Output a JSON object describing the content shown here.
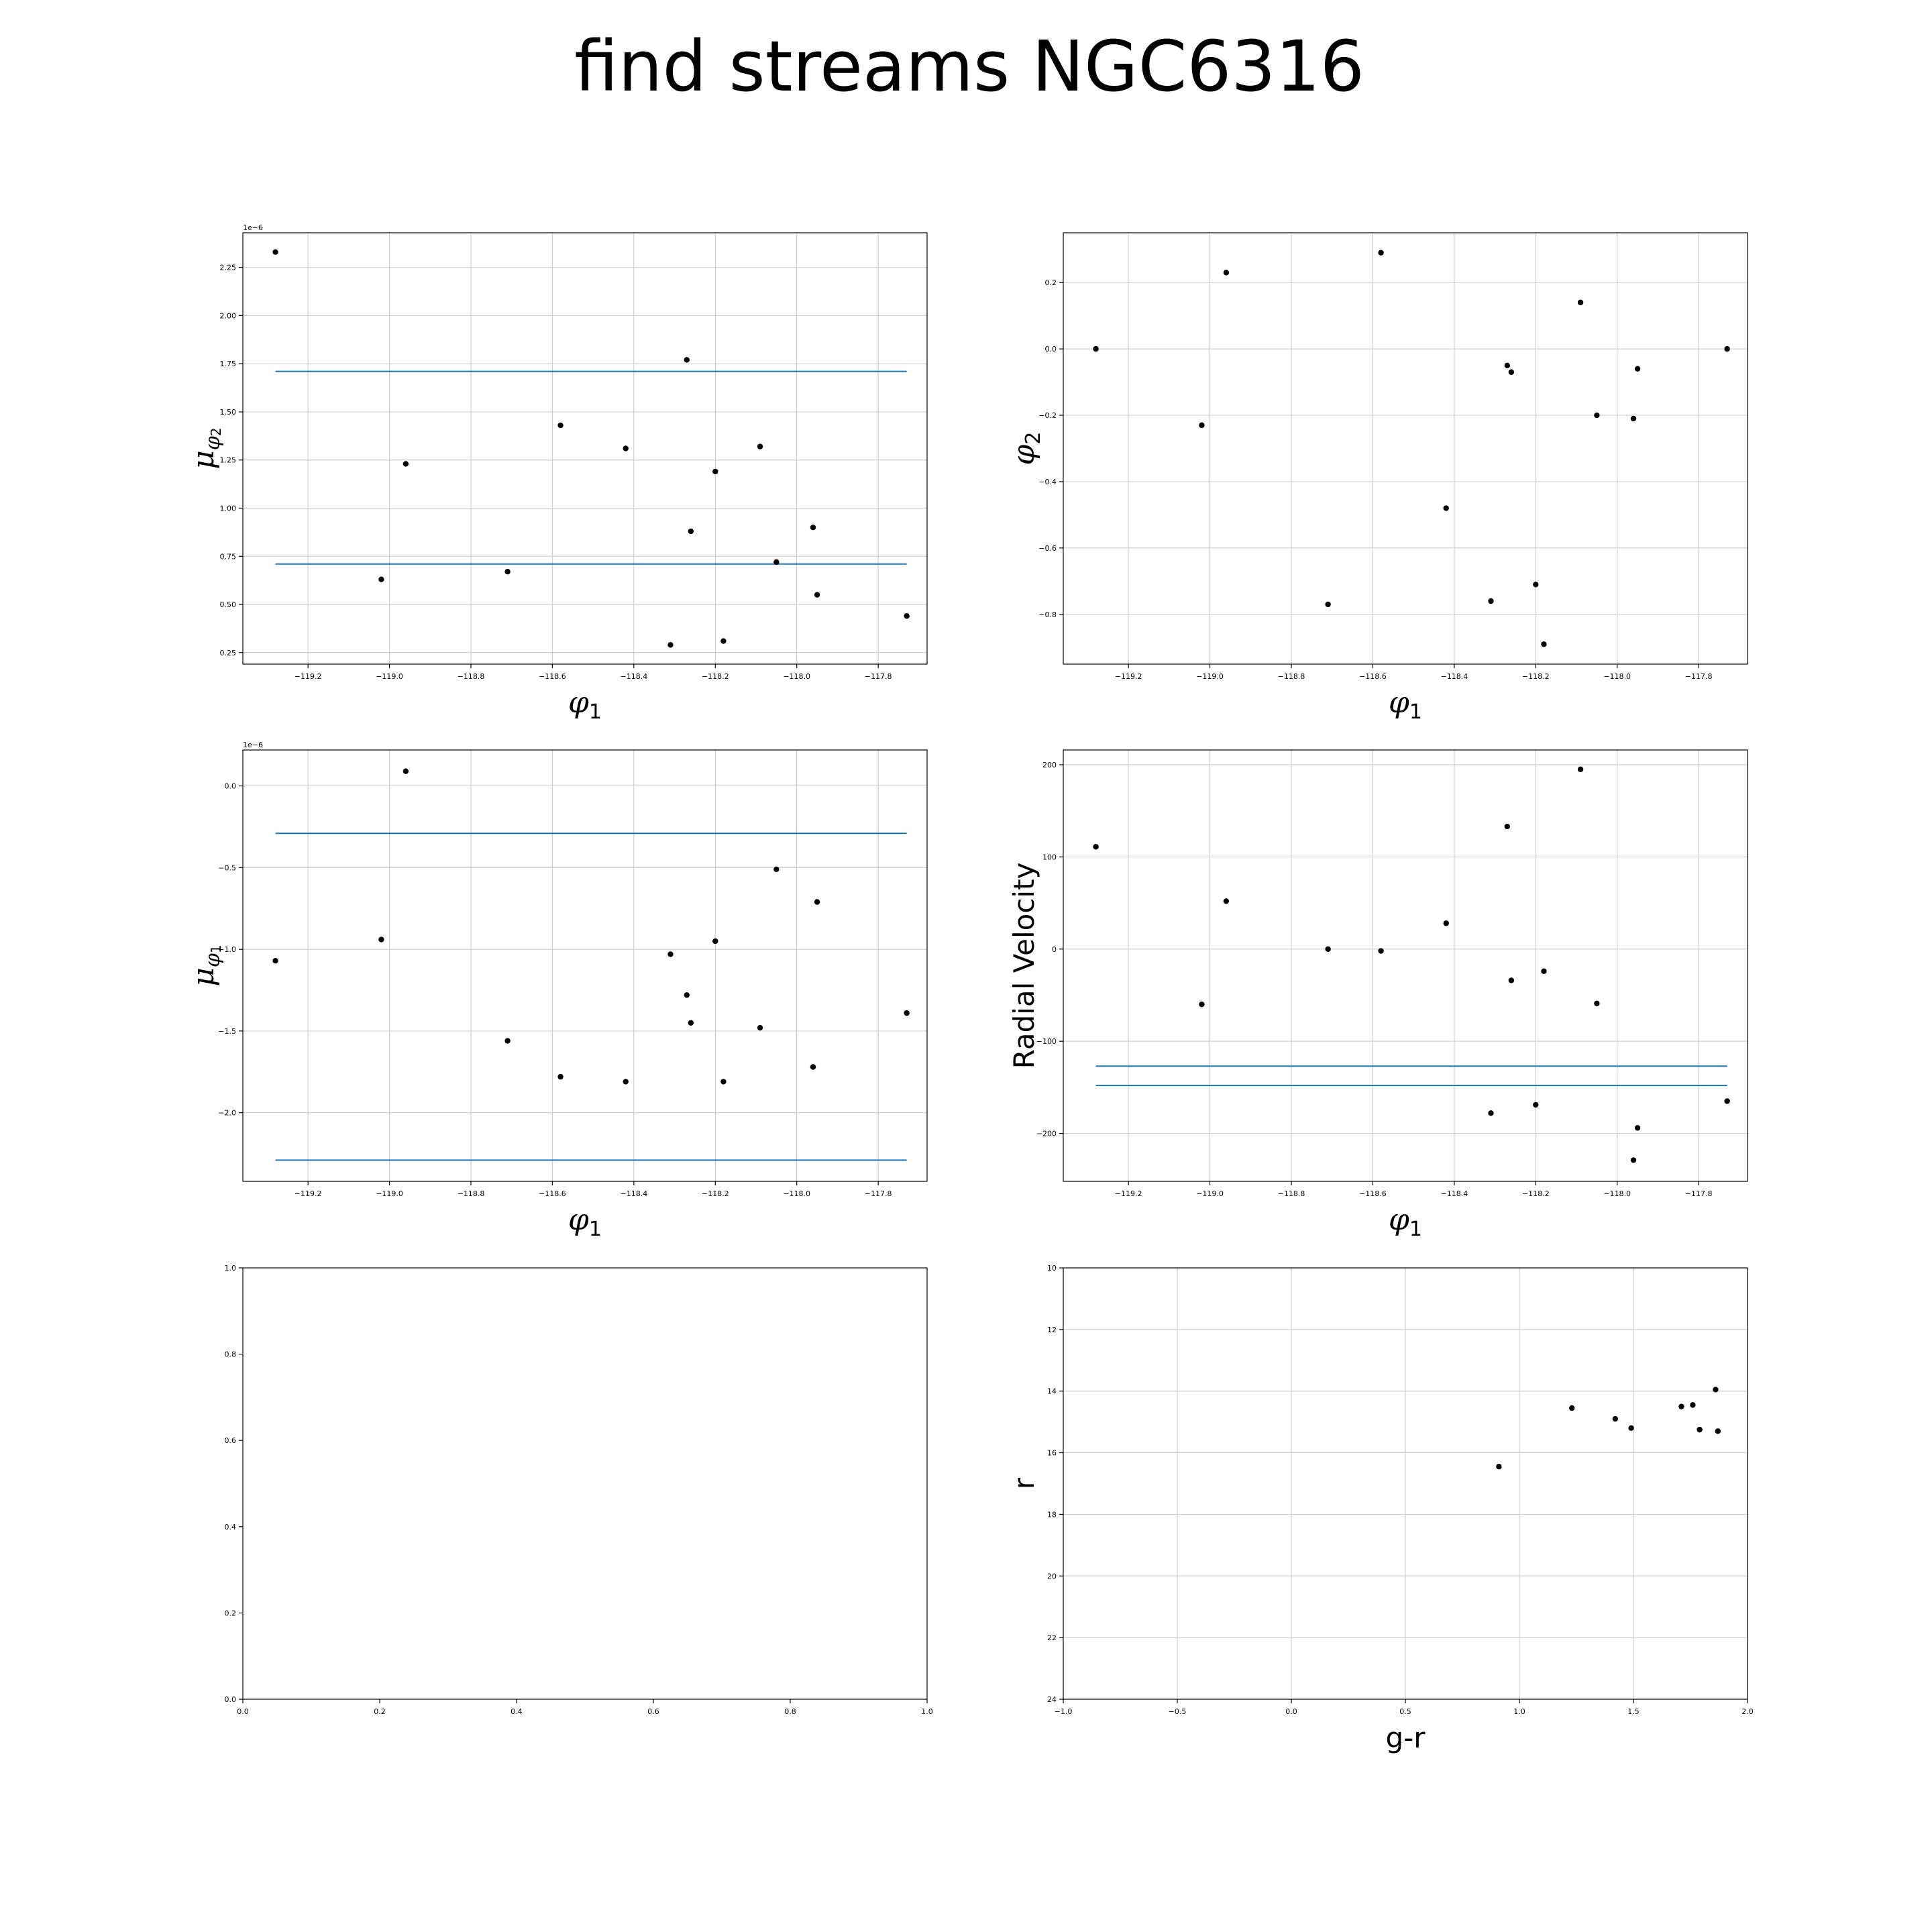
{
  "figure": {
    "title": "find streams NGC6316",
    "colors": {
      "points": "#000000",
      "bounds": "#1f77b4",
      "grid": "#cfcfcf"
    }
  },
  "chart_data": [
    {
      "id": "pm2",
      "type": "scatter",
      "title": "",
      "xlabel": "φ₁",
      "ylabel": "μφ₂",
      "xlabel_parts": {
        "sym": "φ",
        "sub": "1"
      },
      "ylabel_parts": {
        "sym": "μ",
        "sub_sym": "φ",
        "sub": "2"
      },
      "y_offset_text": "1e−6",
      "xlim": [
        -119.36,
        -117.68
      ],
      "ylim": [
        0.19,
        2.43
      ],
      "xticks": [
        -119.2,
        -119.0,
        -118.8,
        -118.6,
        -118.4,
        -118.2,
        -118.0,
        -117.8
      ],
      "xtick_labels": [
        "−119.2",
        "−119.0",
        "−118.8",
        "−118.6",
        "−118.4",
        "−118.2",
        "−118.0",
        "−117.8"
      ],
      "yticks": [
        0.25,
        0.5,
        0.75,
        1.0,
        1.25,
        1.5,
        1.75,
        2.0,
        2.25
      ],
      "ytick_labels": [
        "0.25",
        "0.50",
        "0.75",
        "1.00",
        "1.25",
        "1.50",
        "1.75",
        "2.00",
        "2.25"
      ],
      "grid": true,
      "hlines": [
        {
          "y": 1.71,
          "x0": -119.28,
          "x1": -117.73
        },
        {
          "y": 0.71,
          "x0": -119.28,
          "x1": -117.73
        }
      ],
      "points": [
        {
          "x": -119.28,
          "y": 2.33
        },
        {
          "x": -119.02,
          "y": 0.63
        },
        {
          "x": -118.96,
          "y": 1.23
        },
        {
          "x": -118.71,
          "y": 0.67
        },
        {
          "x": -118.58,
          "y": 1.43
        },
        {
          "x": -118.42,
          "y": 1.31
        },
        {
          "x": -118.31,
          "y": 0.29
        },
        {
          "x": -118.27,
          "y": 1.77
        },
        {
          "x": -118.26,
          "y": 0.88
        },
        {
          "x": -118.2,
          "y": 1.19
        },
        {
          "x": -118.18,
          "y": 0.31
        },
        {
          "x": -118.09,
          "y": 1.32
        },
        {
          "x": -118.05,
          "y": 0.72
        },
        {
          "x": -117.96,
          "y": 0.9
        },
        {
          "x": -117.95,
          "y": 0.55
        },
        {
          "x": -117.73,
          "y": 0.44
        }
      ]
    },
    {
      "id": "phi2",
      "type": "scatter",
      "title": "",
      "xlabel": "φ₁",
      "ylabel": "φ₂",
      "xlabel_parts": {
        "sym": "φ",
        "sub": "1"
      },
      "ylabel_parts": {
        "sym": "φ",
        "sub": "2"
      },
      "y_offset_text": "",
      "xlim": [
        -119.36,
        -117.68
      ],
      "ylim": [
        -0.95,
        0.35
      ],
      "xticks": [
        -119.2,
        -119.0,
        -118.8,
        -118.6,
        -118.4,
        -118.2,
        -118.0,
        -117.8
      ],
      "xtick_labels": [
        "−119.2",
        "−119.0",
        "−118.8",
        "−118.6",
        "−118.4",
        "−118.2",
        "−118.0",
        "−117.8"
      ],
      "yticks": [
        -0.8,
        -0.6,
        -0.4,
        -0.2,
        0.0,
        0.2
      ],
      "ytick_labels": [
        "−0.8",
        "−0.6",
        "−0.4",
        "−0.2",
        "0.0",
        "0.2"
      ],
      "grid": true,
      "hlines": [],
      "points": [
        {
          "x": -119.28,
          "y": 0.0
        },
        {
          "x": -119.02,
          "y": -0.23
        },
        {
          "x": -118.96,
          "y": 0.23
        },
        {
          "x": -118.71,
          "y": -0.77
        },
        {
          "x": -118.58,
          "y": 0.29
        },
        {
          "x": -118.42,
          "y": -0.48
        },
        {
          "x": -118.31,
          "y": -0.76
        },
        {
          "x": -118.27,
          "y": -0.05
        },
        {
          "x": -118.26,
          "y": -0.07
        },
        {
          "x": -118.2,
          "y": -0.71
        },
        {
          "x": -118.18,
          "y": -0.89
        },
        {
          "x": -118.09,
          "y": 0.14
        },
        {
          "x": -118.05,
          "y": -0.2
        },
        {
          "x": -117.96,
          "y": -0.21
        },
        {
          "x": -117.95,
          "y": -0.06
        },
        {
          "x": -117.73,
          "y": 0.0
        }
      ]
    },
    {
      "id": "pm1",
      "type": "scatter",
      "title": "",
      "xlabel": "φ₁",
      "ylabel": "μφ₁",
      "xlabel_parts": {
        "sym": "φ",
        "sub": "1"
      },
      "ylabel_parts": {
        "sym": "μ",
        "sub_sym": "φ",
        "sub": "1"
      },
      "y_offset_text": "1e−6",
      "xlim": [
        -119.36,
        -117.68
      ],
      "ylim": [
        -2.42,
        0.22
      ],
      "xticks": [
        -119.2,
        -119.0,
        -118.8,
        -118.6,
        -118.4,
        -118.2,
        -118.0,
        -117.8
      ],
      "xtick_labels": [
        "−119.2",
        "−119.0",
        "−118.8",
        "−118.6",
        "−118.4",
        "−118.2",
        "−118.0",
        "−117.8"
      ],
      "yticks": [
        -2.0,
        -1.5,
        -1.0,
        -0.5,
        0.0
      ],
      "ytick_labels": [
        "−2.0",
        "−1.5",
        "−1.0",
        "−0.5",
        "0.0"
      ],
      "grid": true,
      "hlines": [
        {
          "y": -0.29,
          "x0": -119.28,
          "x1": -117.73
        },
        {
          "y": -2.29,
          "x0": -119.28,
          "x1": -117.73
        }
      ],
      "points": [
        {
          "x": -119.28,
          "y": -1.07
        },
        {
          "x": -119.02,
          "y": -0.94
        },
        {
          "x": -118.96,
          "y": 0.09
        },
        {
          "x": -118.71,
          "y": -1.56
        },
        {
          "x": -118.58,
          "y": -1.78
        },
        {
          "x": -118.42,
          "y": -1.81
        },
        {
          "x": -118.31,
          "y": -1.03
        },
        {
          "x": -118.27,
          "y": -1.28
        },
        {
          "x": -118.26,
          "y": -1.45
        },
        {
          "x": -118.2,
          "y": -0.95
        },
        {
          "x": -118.18,
          "y": -1.81
        },
        {
          "x": -118.09,
          "y": -1.48
        },
        {
          "x": -118.05,
          "y": -0.51
        },
        {
          "x": -117.96,
          "y": -1.72
        },
        {
          "x": -117.95,
          "y": -0.71
        },
        {
          "x": -117.73,
          "y": -1.39
        }
      ]
    },
    {
      "id": "rv",
      "type": "scatter",
      "title": "",
      "xlabel": "φ₁",
      "ylabel": "Radial Velocity",
      "xlabel_parts": {
        "sym": "φ",
        "sub": "1"
      },
      "ylabel_parts": null,
      "y_offset_text": "",
      "xlim": [
        -119.36,
        -117.68
      ],
      "ylim": [
        -252,
        216
      ],
      "xticks": [
        -119.2,
        -119.0,
        -118.8,
        -118.6,
        -118.4,
        -118.2,
        -118.0,
        -117.8
      ],
      "xtick_labels": [
        "−119.2",
        "−119.0",
        "−118.8",
        "−118.6",
        "−118.4",
        "−118.2",
        "−118.0",
        "−117.8"
      ],
      "yticks": [
        -200,
        -100,
        0,
        100,
        200
      ],
      "ytick_labels": [
        "−200",
        "−100",
        "0",
        "100",
        "200"
      ],
      "grid": true,
      "hlines": [
        {
          "y": -127,
          "x0": -119.28,
          "x1": -117.73
        },
        {
          "y": -148,
          "x0": -119.28,
          "x1": -117.73
        }
      ],
      "points": [
        {
          "x": -119.28,
          "y": 111
        },
        {
          "x": -119.02,
          "y": -60
        },
        {
          "x": -118.96,
          "y": 52
        },
        {
          "x": -118.71,
          "y": 0
        },
        {
          "x": -118.58,
          "y": -2
        },
        {
          "x": -118.42,
          "y": 28
        },
        {
          "x": -118.31,
          "y": -178
        },
        {
          "x": -118.27,
          "y": 133
        },
        {
          "x": -118.26,
          "y": -34
        },
        {
          "x": -118.2,
          "y": -169
        },
        {
          "x": -118.18,
          "y": -24
        },
        {
          "x": -118.09,
          "y": 195
        },
        {
          "x": -118.05,
          "y": -59
        },
        {
          "x": -117.96,
          "y": -229
        },
        {
          "x": -117.95,
          "y": -194
        },
        {
          "x": -117.73,
          "y": -165
        }
      ]
    },
    {
      "id": "empty",
      "type": "scatter",
      "title": "",
      "xlabel": "",
      "ylabel": "",
      "xlabel_parts": null,
      "ylabel_parts": null,
      "y_offset_text": "",
      "xlim": [
        0,
        1
      ],
      "ylim": [
        0,
        1
      ],
      "xticks": [
        0.0,
        0.2,
        0.4,
        0.6,
        0.8,
        1.0
      ],
      "xtick_labels": [
        "0.0",
        "0.2",
        "0.4",
        "0.6",
        "0.8",
        "1.0"
      ],
      "yticks": [
        0.0,
        0.2,
        0.4,
        0.6,
        0.8,
        1.0
      ],
      "ytick_labels": [
        "0.0",
        "0.2",
        "0.4",
        "0.6",
        "0.8",
        "1.0"
      ],
      "grid": false,
      "hlines": [],
      "points": []
    },
    {
      "id": "cmd",
      "type": "scatter",
      "title": "",
      "xlabel": "g-r",
      "ylabel": "r",
      "xlabel_parts": null,
      "ylabel_parts": null,
      "y_offset_text": "",
      "xlim": [
        -1.0,
        2.0
      ],
      "ylim": [
        24,
        10
      ],
      "y_inverted": true,
      "xticks": [
        -1.0,
        -0.5,
        0.0,
        0.5,
        1.0,
        1.5,
        2.0
      ],
      "xtick_labels": [
        "−1.0",
        "−0.5",
        "0.0",
        "0.5",
        "1.0",
        "1.5",
        "2.0"
      ],
      "yticks": [
        10,
        12,
        14,
        16,
        18,
        20,
        22,
        24
      ],
      "ytick_labels": [
        "10",
        "12",
        "14",
        "16",
        "18",
        "20",
        "22",
        "24"
      ],
      "grid": true,
      "hlines": [],
      "points": [
        {
          "x": 0.91,
          "y": 16.45
        },
        {
          "x": 1.23,
          "y": 14.55
        },
        {
          "x": 1.42,
          "y": 14.9
        },
        {
          "x": 1.49,
          "y": 15.2
        },
        {
          "x": 1.71,
          "y": 14.5
        },
        {
          "x": 1.76,
          "y": 14.45
        },
        {
          "x": 1.79,
          "y": 15.25
        },
        {
          "x": 1.86,
          "y": 13.95
        },
        {
          "x": 1.87,
          "y": 15.3
        }
      ]
    }
  ]
}
